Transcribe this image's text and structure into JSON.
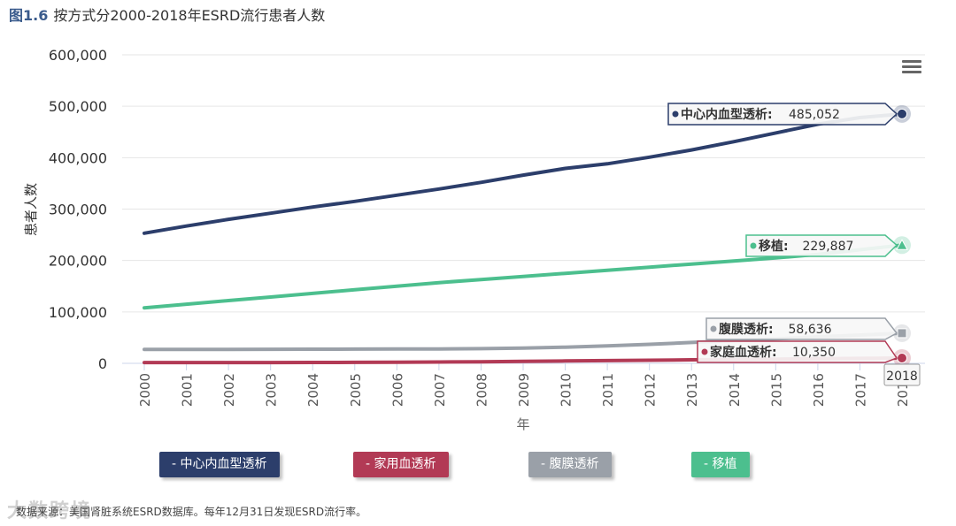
{
  "figure": {
    "number": "图1.6",
    "title": "按方式分2000-2018年ESRD流行患者人数"
  },
  "source": "数据来源：美国肾脏系统ESRD数据库。每年12月31日发现ESRD流行率。",
  "watermark": "大数跨境",
  "chart_data": {
    "type": "line",
    "title": "按方式分2000-2018年ESRD流行患者人数",
    "xlabel": "年",
    "ylabel": "患者人数",
    "ylim": [
      0,
      600000
    ],
    "yticks": [
      0,
      100000,
      200000,
      300000,
      400000,
      500000,
      600000
    ],
    "ytick_labels": [
      "0",
      "100,000",
      "200,000",
      "300,000",
      "400,000",
      "500,000",
      "600,000"
    ],
    "categories": [
      "2000",
      "2001",
      "2002",
      "2003",
      "2004",
      "2005",
      "2006",
      "2007",
      "2008",
      "2009",
      "2010",
      "2011",
      "2012",
      "2013",
      "2014",
      "2015",
      "2016",
      "2017",
      "2018"
    ],
    "hover_category": "2018",
    "series": [
      {
        "name": "中心内血型透析",
        "legend_label": "- 中心内血型透析",
        "color": "#2c3e6b",
        "marker": "circle",
        "values": [
          253000,
          267000,
          280000,
          292000,
          304000,
          315000,
          327000,
          339000,
          352000,
          366000,
          379000,
          388000,
          401000,
          415000,
          431000,
          448000,
          465000,
          478000,
          485052
        ],
        "tooltip": {
          "label": "中心内血型透析:",
          "value": "485,052"
        }
      },
      {
        "name": "家庭血透析",
        "legend_label": "- 家用血透析",
        "color": "#b23a55",
        "marker": "circle",
        "values": [
          1500,
          1500,
          1500,
          1600,
          1700,
          1900,
          2200,
          2600,
          3100,
          3800,
          4600,
          5400,
          6100,
          6800,
          7500,
          8200,
          8900,
          9600,
          10350
        ],
        "tooltip": {
          "label": "家庭血透析:",
          "value": "10,350"
        }
      },
      {
        "name": "腹膜透析",
        "legend_label": "- 腹膜透析",
        "color": "#9aa0a8",
        "marker": "square",
        "values": [
          27000,
          27000,
          27200,
          27400,
          27500,
          27600,
          27800,
          28000,
          28500,
          29500,
          31500,
          34000,
          37000,
          40500,
          44000,
          47500,
          51500,
          55000,
          58636
        ],
        "tooltip": {
          "label": "腹膜透析:",
          "value": "58,636"
        }
      },
      {
        "name": "移植",
        "legend_label": "- 移植",
        "color": "#4cbf8e",
        "marker": "triangle",
        "values": [
          108000,
          115000,
          122000,
          129000,
          136000,
          143000,
          150000,
          157000,
          163000,
          169000,
          175000,
          181000,
          187000,
          193000,
          199000,
          205000,
          212000,
          221000,
          229887
        ],
        "tooltip": {
          "label": "移植:",
          "value": "229,887"
        }
      }
    ]
  }
}
